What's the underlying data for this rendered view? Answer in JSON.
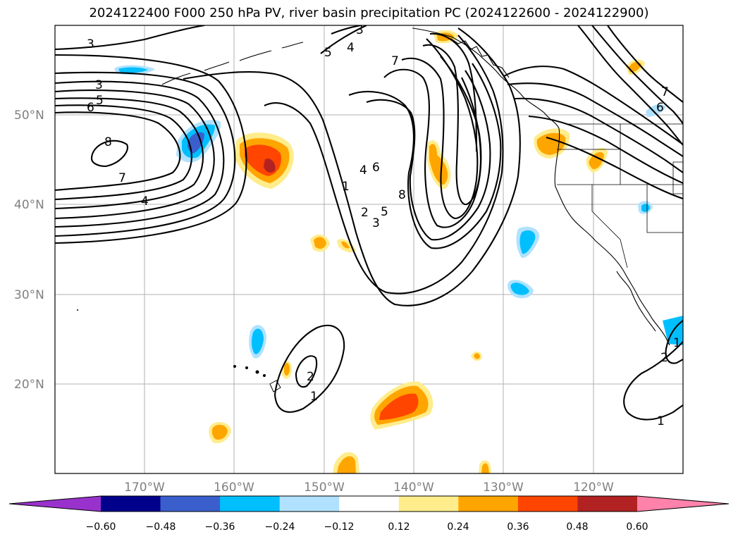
{
  "title": "2024122400 F000 250 hPa PV, river basin precipitation PC (2024122600 - 2024122900)",
  "map": {
    "lat_labels": [
      "50°N",
      "40°N",
      "30°N",
      "20°N"
    ],
    "lon_labels": [
      "170°W",
      "160°W",
      "150°W",
      "140°W",
      "130°W",
      "120°W"
    ],
    "pv_contour_labels": [
      "3",
      "3",
      "5",
      "4",
      "7",
      "3",
      "5",
      "6",
      "8",
      "7",
      "4",
      "4",
      "6",
      "1",
      "2",
      "5",
      "3",
      "8",
      "7",
      "6",
      "2",
      "1",
      "2",
      "1",
      "1"
    ]
  },
  "colorbar": {
    "colors": [
      "#9932cc",
      "#00008b",
      "#3a5fcd",
      "#00bfff",
      "#b0e2ff",
      "#ffffff",
      "#ffec8b",
      "#ffa500",
      "#ff4500",
      "#b22222",
      "#ff82ab"
    ],
    "ticks": [
      "−0.60",
      "−0.48",
      "−0.36",
      "−0.24",
      "−0.12",
      "0.12",
      "0.24",
      "0.36",
      "0.48",
      "0.60"
    ]
  }
}
